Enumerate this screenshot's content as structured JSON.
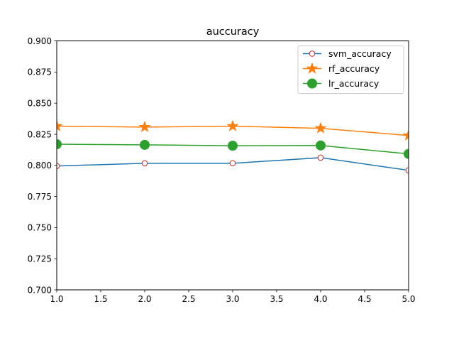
{
  "chart_data": {
    "type": "line",
    "title": "auccuracy",
    "xlabel": "",
    "ylabel": "",
    "xlim": [
      1.0,
      5.0
    ],
    "ylim": [
      0.7,
      0.9
    ],
    "xticks": [
      "1.0",
      "1.5",
      "2.0",
      "2.5",
      "3.0",
      "3.5",
      "4.0",
      "4.5",
      "5.0"
    ],
    "yticks": [
      "0.700",
      "0.725",
      "0.750",
      "0.775",
      "0.800",
      "0.825",
      "0.850",
      "0.875",
      "0.900"
    ],
    "grid": false,
    "legend_position": "top-right",
    "x": [
      1,
      2,
      3,
      4,
      5
    ],
    "series": [
      {
        "name": "svm_accuracy",
        "values": [
          0.7995,
          0.8017,
          0.8017,
          0.8062,
          0.796
        ],
        "color": "#1f77b4",
        "marker": "circle-open"
      },
      {
        "name": "rf_accuracy",
        "values": [
          0.8315,
          0.8308,
          0.8315,
          0.8298,
          0.824
        ],
        "color": "#ff7f0e",
        "marker": "star"
      },
      {
        "name": "lr_accuracy",
        "values": [
          0.817,
          0.8165,
          0.8158,
          0.816,
          0.8092
        ],
        "color": "#2ca02c",
        "marker": "circle-filled"
      }
    ]
  }
}
